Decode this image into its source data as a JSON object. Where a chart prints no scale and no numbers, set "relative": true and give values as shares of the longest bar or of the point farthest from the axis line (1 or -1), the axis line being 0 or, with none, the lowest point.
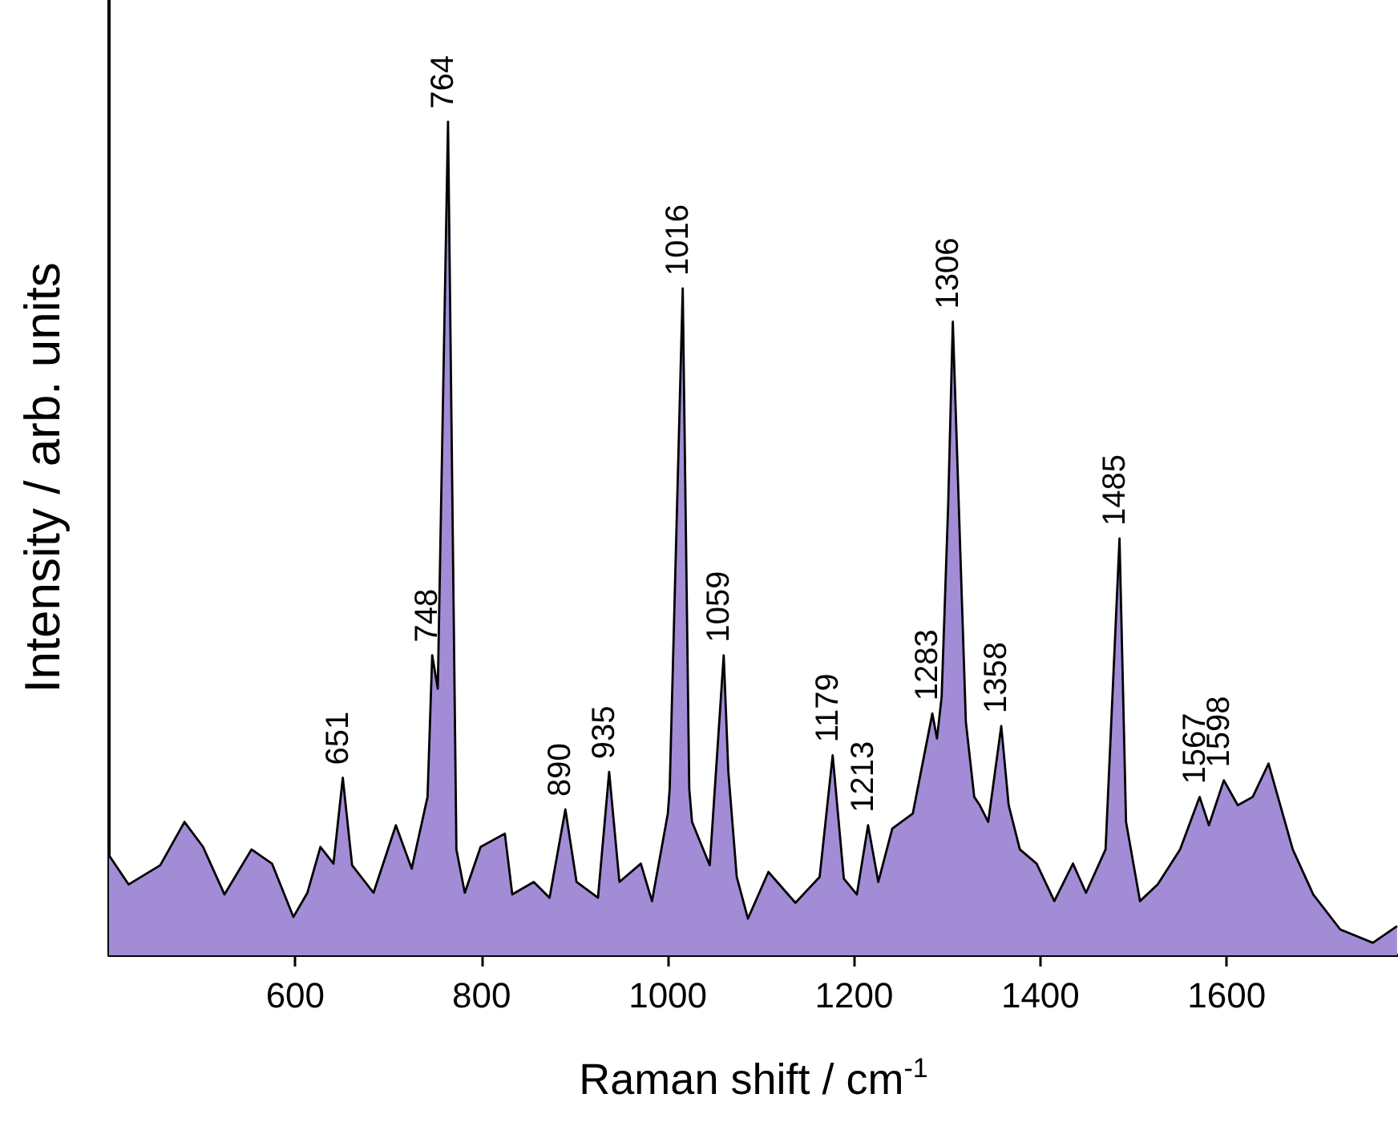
{
  "chart_data": {
    "type": "area",
    "xlabel": "Raman shift / cm$^{-1}$",
    "ylabel": "Intensity / arb. units",
    "relative": true,
    "x": [
      400,
      421,
      455,
      481,
      501,
      524,
      553,
      575,
      598,
      613,
      627,
      641,
      651,
      661,
      684,
      708,
      725,
      742,
      747,
      753,
      764,
      773,
      782,
      799,
      825,
      833,
      856,
      873,
      890,
      902,
      925,
      937,
      948,
      971,
      983,
      1000,
      1002,
      1016,
      1023,
      1026,
      1045,
      1060,
      1065,
      1074,
      1086,
      1108,
      1137,
      1163,
      1177,
      1189,
      1203,
      1215,
      1226,
      1241,
      1263,
      1284,
      1289,
      1294,
      1301,
      1306,
      1320,
      1329,
      1335,
      1344,
      1358,
      1366,
      1378,
      1396,
      1415,
      1435,
      1449,
      1470,
      1485,
      1492,
      1507,
      1526,
      1550,
      1571,
      1581,
      1597,
      1612,
      1628,
      1645,
      1671,
      1693,
      1722,
      1757,
      1783
    ],
    "series": [
      {
        "color": "#a38cd6",
        "values": [
          0.12,
          0.085,
          0.108,
          0.16,
          0.13,
          0.073,
          0.127,
          0.11,
          0.046,
          0.075,
          0.13,
          0.11,
          0.213,
          0.108,
          0.075,
          0.156,
          0.104,
          0.19,
          0.36,
          0.32,
          1.0,
          0.127,
          0.075,
          0.13,
          0.146,
          0.073,
          0.088,
          0.069,
          0.175,
          0.088,
          0.069,
          0.22,
          0.088,
          0.11,
          0.065,
          0.17,
          0.2,
          0.8,
          0.2,
          0.16,
          0.108,
          0.36,
          0.22,
          0.094,
          0.044,
          0.1,
          0.063,
          0.094,
          0.24,
          0.092,
          0.073,
          0.156,
          0.088,
          0.152,
          0.17,
          0.29,
          0.26,
          0.31,
          0.54,
          0.76,
          0.28,
          0.19,
          0.18,
          0.16,
          0.275,
          0.18,
          0.127,
          0.11,
          0.065,
          0.11,
          0.075,
          0.127,
          0.5,
          0.16,
          0.065,
          0.085,
          0.127,
          0.19,
          0.156,
          0.21,
          0.18,
          0.19,
          0.23,
          0.127,
          0.073,
          0.031,
          0.015,
          0.035
        ]
      }
    ],
    "xlim": [
      400,
      1784
    ],
    "xticks": [
      600,
      800,
      1000,
      1200,
      1400,
      1600
    ],
    "annotations": [
      {
        "text": "651",
        "x": 651,
        "y": 0.213
      },
      {
        "text": "748",
        "x": 747,
        "y": 0.36
      },
      {
        "text": "764",
        "x": 764,
        "y": 1.0
      },
      {
        "text": "890",
        "x": 890,
        "y": 0.175
      },
      {
        "text": "935",
        "x": 937,
        "y": 0.22
      },
      {
        "text": "1016",
        "x": 1016,
        "y": 0.8
      },
      {
        "text": "1059",
        "x": 1060,
        "y": 0.36
      },
      {
        "text": "1179",
        "x": 1177,
        "y": 0.24
      },
      {
        "text": "1213",
        "x": 1215,
        "y": 0.156
      },
      {
        "text": "1283",
        "x": 1284,
        "y": 0.29
      },
      {
        "text": "1306",
        "x": 1306,
        "y": 0.76
      },
      {
        "text": "1358",
        "x": 1358,
        "y": 0.275
      },
      {
        "text": "1485",
        "x": 1485,
        "y": 0.5
      },
      {
        "text": "1567",
        "x": 1571,
        "y": 0.19
      },
      {
        "text": "1598",
        "x": 1597,
        "y": 0.21
      }
    ],
    "grid": false
  }
}
